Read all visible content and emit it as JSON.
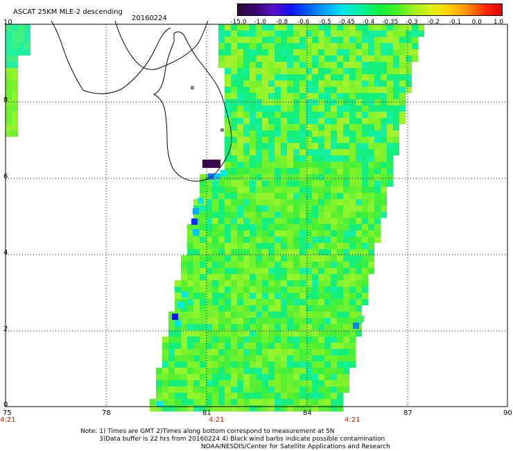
{
  "header": {
    "title": "ASCAT 25KM MLE-2 descending",
    "date": "20160224"
  },
  "colorbar": {
    "labels": [
      "-15.0",
      "-1.0",
      "-0.8",
      "-0.6",
      "-0.5",
      "-0.45",
      "-0.4",
      "-0.35",
      "-0.3",
      "-0.2",
      "-0.1",
      "0.0",
      "1.0"
    ],
    "colors": [
      "#2a0a3a",
      "#3a0670",
      "#5a10c8",
      "#1010f0",
      "#0060ff",
      "#00a8ff",
      "#00e8e8",
      "#00f0a0",
      "#10f040",
      "#40f020",
      "#a0f020",
      "#e0f010",
      "#ffd000",
      "#ff9000",
      "#ff3000",
      "#e00000"
    ]
  },
  "axes": {
    "x_ticks": [
      "75",
      "78",
      "81",
      "84",
      "87",
      "90"
    ],
    "y_ticks": [
      "0",
      "2",
      "4",
      "6",
      "8",
      "10"
    ],
    "times": [
      "4:21",
      "4:21",
      "4:21"
    ]
  },
  "notes": {
    "line1": "Note: 1) Times are GMT 2)Times along bottom correspond to measurement at 5N",
    "line2": "3)Data buffer is 22 hrs from 20160224 4) Black wind barbs indicate possible contamination",
    "line3": "NOAA/NESDIS/Center for Satellite Applications and Research"
  },
  "colors": {
    "grid": "#000000",
    "time_label": "#cc2200",
    "contamination": "#3a0a4a"
  }
}
